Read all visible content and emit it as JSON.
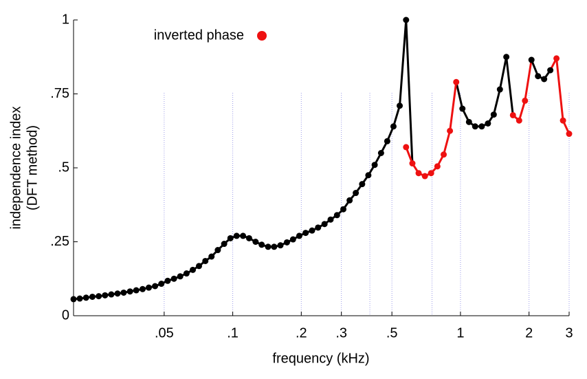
{
  "chart_data": {
    "type": "line",
    "log_x": true,
    "xlabel": "frequency (kHz)",
    "ylabel": [
      "independence index",
      "(DFT method)"
    ],
    "xlim": [
      0.02,
      3
    ],
    "ylim": [
      0,
      1
    ],
    "xticks": [
      {
        "value": 0.05,
        "label": ".05"
      },
      {
        "value": 0.1,
        "label": ".1"
      },
      {
        "value": 0.2,
        "label": ".2"
      },
      {
        "value": 0.3,
        "label": ".3"
      },
      {
        "value": 0.5,
        "label": ".5"
      },
      1,
      2,
      3
    ],
    "yticks": [
      0,
      {
        "value": 0.25,
        "label": ".25"
      },
      {
        "value": 0.5,
        "label": ".5"
      },
      {
        "value": 0.75,
        "label": ".75"
      },
      1
    ],
    "xgrid": [
      0.05,
      0.1,
      0.2,
      0.3,
      0.4,
      0.5,
      0.75,
      1,
      2,
      3
    ],
    "grid_color": "#9a9ae8",
    "x": [
      0.02,
      0.0213,
      0.0227,
      0.0242,
      0.0258,
      0.0275,
      0.0293,
      0.0312,
      0.0332,
      0.0354,
      0.0377,
      0.0402,
      0.0428,
      0.0456,
      0.0486,
      0.0518,
      0.0552,
      0.0588,
      0.0627,
      0.0668,
      0.0711,
      0.0758,
      0.0807,
      0.086,
      0.0917,
      0.0977,
      0.104,
      0.111,
      0.118,
      0.126,
      0.134,
      0.143,
      0.152,
      0.162,
      0.173,
      0.184,
      0.196,
      0.209,
      0.223,
      0.237,
      0.253,
      0.269,
      0.287,
      0.306,
      0.326,
      0.347,
      0.37,
      0.394,
      0.42,
      0.448,
      0.477,
      0.508,
      0.541,
      0.577,
      0.615,
      0.655,
      0.698,
      0.743,
      0.792,
      0.844,
      0.899,
      0.958,
      1.02,
      1.09,
      1.16,
      1.24,
      1.32,
      1.4,
      1.49,
      1.59,
      1.7,
      1.81,
      1.92,
      2.05,
      2.19,
      2.33,
      2.48,
      2.64,
      2.82,
      3.0
    ],
    "series": [
      {
        "color": "#000000",
        "values": [
          0.056,
          0.058,
          0.061,
          0.064,
          0.066,
          0.069,
          0.072,
          0.075,
          0.078,
          0.082,
          0.086,
          0.09,
          0.095,
          0.1,
          0.108,
          0.118,
          0.125,
          0.133,
          0.143,
          0.155,
          0.168,
          0.185,
          0.2,
          0.222,
          0.243,
          0.262,
          0.27,
          0.27,
          0.262,
          0.25,
          0.24,
          0.233,
          0.233,
          0.238,
          0.248,
          0.258,
          0.27,
          0.28,
          0.288,
          0.298,
          0.31,
          0.325,
          0.34,
          0.36,
          0.39,
          0.415,
          0.445,
          0.475,
          0.51,
          0.55,
          0.59,
          0.64,
          0.71,
          1.0,
          null,
          null,
          null,
          null,
          null,
          null,
          null,
          null,
          0.7,
          0.655,
          0.64,
          0.64,
          0.65,
          0.68,
          0.765,
          0.875,
          null,
          null,
          null,
          0.865,
          0.81,
          0.8,
          0.83,
          null,
          null,
          null
        ]
      },
      {
        "name": "inverted phase",
        "color": "#ee1111",
        "values": [
          null,
          null,
          null,
          null,
          null,
          null,
          null,
          null,
          null,
          null,
          null,
          null,
          null,
          null,
          null,
          null,
          null,
          null,
          null,
          null,
          null,
          null,
          null,
          null,
          null,
          null,
          null,
          null,
          null,
          null,
          null,
          null,
          null,
          null,
          null,
          null,
          null,
          null,
          null,
          null,
          null,
          null,
          null,
          null,
          null,
          null,
          null,
          null,
          null,
          null,
          null,
          null,
          null,
          0.57,
          0.515,
          0.482,
          0.472,
          0.482,
          0.505,
          0.545,
          0.625,
          0.79,
          null,
          null,
          null,
          null,
          null,
          null,
          null,
          null,
          0.678,
          0.66,
          0.727,
          null,
          null,
          null,
          null,
          0.87,
          0.66,
          0.615
        ]
      }
    ]
  }
}
